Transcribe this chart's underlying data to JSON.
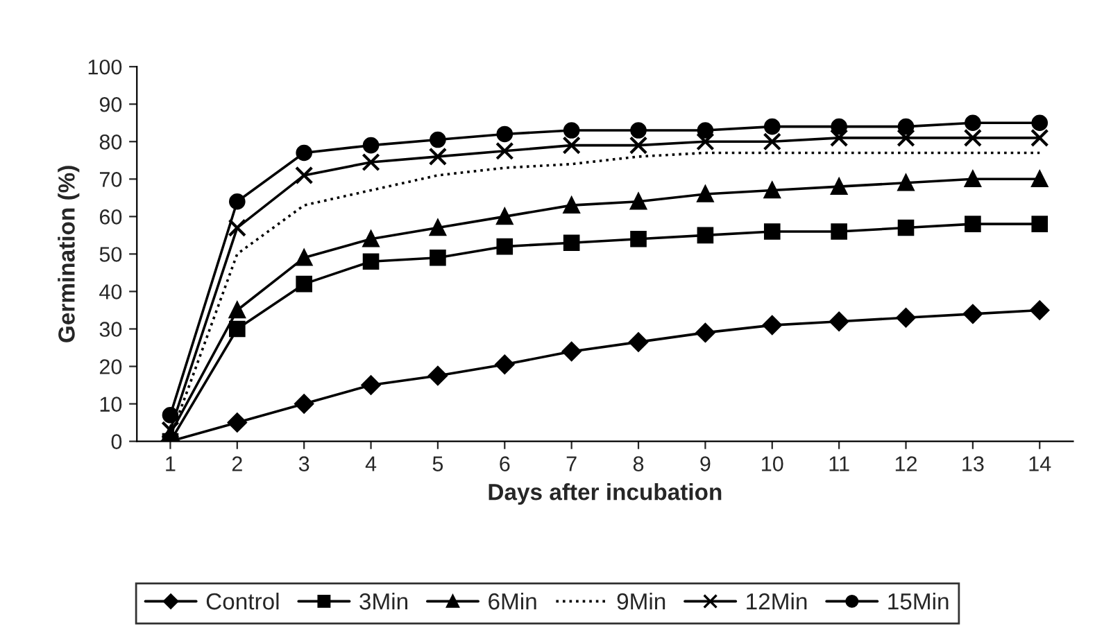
{
  "chart_data": {
    "type": "line",
    "xlabel": "Days after incubation",
    "ylabel": "Germination (%)",
    "categories": [
      "1",
      "2",
      "3",
      "4",
      "5",
      "6",
      "7",
      "8",
      "9",
      "10",
      "11",
      "12",
      "13",
      "14"
    ],
    "ylim": [
      0,
      100
    ],
    "yticks": [
      0,
      10,
      20,
      30,
      40,
      50,
      60,
      70,
      80,
      90,
      100
    ],
    "grid": false,
    "legend": "bottom",
    "series": [
      {
        "name": "Control",
        "color": "#000000",
        "marker": "diamond",
        "line_style": "solid",
        "values": [
          0,
          5,
          10,
          15,
          17.5,
          20.5,
          24,
          26.5,
          29,
          31,
          32,
          33,
          34,
          35
        ]
      },
      {
        "name": "3Min",
        "color": "#000000",
        "marker": "square",
        "line_style": "solid",
        "values": [
          0,
          30,
          42,
          48,
          49,
          52,
          53,
          54,
          55,
          56,
          56,
          57,
          58,
          58
        ]
      },
      {
        "name": "6Min",
        "color": "#000000",
        "marker": "triangle",
        "line_style": "solid",
        "values": [
          2,
          35,
          49,
          54,
          57,
          60,
          63,
          64,
          66,
          67,
          68,
          69,
          70,
          70
        ]
      },
      {
        "name": "9Min",
        "color": "#000000",
        "marker": "none",
        "line_style": "dotted",
        "values": [
          1,
          50,
          63,
          67,
          71,
          73,
          74,
          76,
          77,
          77,
          77,
          77,
          77,
          77
        ]
      },
      {
        "name": "12Min",
        "color": "#000000",
        "marker": "cross",
        "line_style": "solid",
        "values": [
          3,
          57,
          71,
          74.5,
          76,
          77.5,
          79,
          79,
          80,
          80,
          81,
          81,
          81,
          81
        ]
      },
      {
        "name": "15Min",
        "color": "#000000",
        "marker": "circle",
        "line_style": "solid",
        "values": [
          7,
          64,
          77,
          79,
          80.5,
          82,
          83,
          83,
          83,
          84,
          84,
          84,
          85,
          85
        ]
      }
    ]
  }
}
